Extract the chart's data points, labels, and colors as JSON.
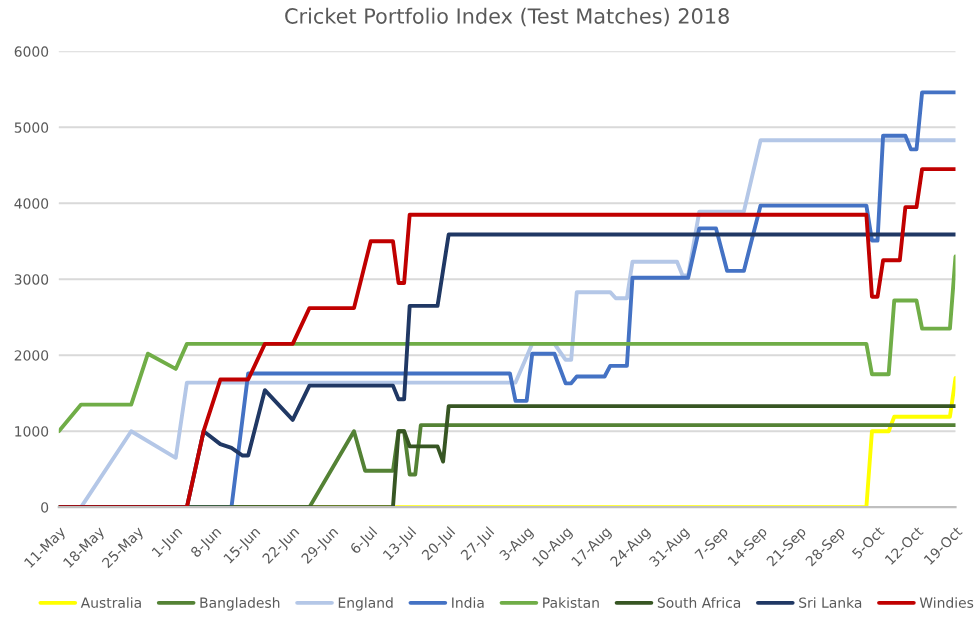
{
  "chart_data": {
    "type": "line",
    "title": "Cricket Portfolio Index (Test Matches) 2018",
    "xlim": [
      "2018-05-11",
      "2018-10-19"
    ],
    "xticks": [
      {
        "value": "2018-05-11",
        "label": "11-May"
      },
      {
        "value": "2018-05-18",
        "label": "18-May"
      },
      {
        "value": "2018-05-25",
        "label": "25-May"
      },
      {
        "value": "2018-06-01",
        "label": "1-Jun"
      },
      {
        "value": "2018-06-08",
        "label": "8-Jun"
      },
      {
        "value": "2018-06-15",
        "label": "15-Jun"
      },
      {
        "value": "2018-06-22",
        "label": "22-Jun"
      },
      {
        "value": "2018-06-29",
        "label": "29-Jun"
      },
      {
        "value": "2018-07-06",
        "label": "6-Jul"
      },
      {
        "value": "2018-07-13",
        "label": "13-Jul"
      },
      {
        "value": "2018-07-20",
        "label": "20-Jul"
      },
      {
        "value": "2018-07-27",
        "label": "27-Jul"
      },
      {
        "value": "2018-08-03",
        "label": "3-Aug"
      },
      {
        "value": "2018-08-10",
        "label": "10-Aug"
      },
      {
        "value": "2018-08-17",
        "label": "17-Aug"
      },
      {
        "value": "2018-08-24",
        "label": "24-Aug"
      },
      {
        "value": "2018-08-31",
        "label": "31-Aug"
      },
      {
        "value": "2018-09-07",
        "label": "7-Sep"
      },
      {
        "value": "2018-09-14",
        "label": "14-Sep"
      },
      {
        "value": "2018-09-21",
        "label": "21-Sep"
      },
      {
        "value": "2018-09-28",
        "label": "28-Sep"
      },
      {
        "value": "2018-10-05",
        "label": "5-Oct"
      },
      {
        "value": "2018-10-12",
        "label": "12-Oct"
      },
      {
        "value": "2018-10-19",
        "label": "19-Oct"
      }
    ],
    "ylim": [
      0,
      6000
    ],
    "yticks": [
      0,
      1000,
      2000,
      3000,
      4000,
      5000,
      6000
    ],
    "grid": "y",
    "legend": "bottom",
    "marker": "none",
    "line_style": "solid",
    "series": [
      {
        "name": "Australia",
        "color": "#ffff00",
        "x": [
          "2018-05-11",
          "2018-10-03",
          "2018-10-04",
          "2018-10-07",
          "2018-10-08",
          "2018-10-18",
          "2018-10-19"
        ],
        "values": [
          0,
          0,
          1000,
          1000,
          1190,
          1190,
          1700
        ]
      },
      {
        "name": "Bangladesh",
        "color": "#548235",
        "x": [
          "2018-05-11",
          "2018-06-25",
          "2018-07-03",
          "2018-07-05",
          "2018-07-10",
          "2018-07-11",
          "2018-07-12",
          "2018-07-13",
          "2018-07-14",
          "2018-07-15",
          "2018-10-19"
        ],
        "values": [
          0,
          0,
          1000,
          480,
          480,
          1000,
          1000,
          430,
          430,
          1080,
          1080
        ]
      },
      {
        "name": "England",
        "color": "#b4c7e7",
        "x": [
          "2018-05-11",
          "2018-05-15",
          "2018-05-24",
          "2018-06-01",
          "2018-06-03",
          "2018-08-01",
          "2018-08-04",
          "2018-08-08",
          "2018-08-10",
          "2018-08-11",
          "2018-08-12",
          "2018-08-18",
          "2018-08-19",
          "2018-08-21",
          "2018-08-22",
          "2018-08-30",
          "2018-08-31",
          "2018-09-01",
          "2018-09-03",
          "2018-09-11",
          "2018-09-14",
          "2018-10-19"
        ],
        "values": [
          0,
          0,
          1000,
          650,
          1640,
          1640,
          2150,
          2150,
          1940,
          1940,
          2830,
          2830,
          2750,
          2750,
          3230,
          3230,
          3050,
          3050,
          3890,
          3890,
          4830,
          4830
        ]
      },
      {
        "name": "India",
        "color": "#4472c4",
        "x": [
          "2018-05-11",
          "2018-06-11",
          "2018-06-14",
          "2018-07-31",
          "2018-08-01",
          "2018-08-03",
          "2018-08-04",
          "2018-08-08",
          "2018-08-10",
          "2018-08-11",
          "2018-08-12",
          "2018-08-17",
          "2018-08-18",
          "2018-08-21",
          "2018-08-22",
          "2018-09-01",
          "2018-09-03",
          "2018-09-06",
          "2018-09-08",
          "2018-09-11",
          "2018-09-14",
          "2018-10-03",
          "2018-10-04",
          "2018-10-05",
          "2018-10-06",
          "2018-10-10",
          "2018-10-11",
          "2018-10-12",
          "2018-10-13",
          "2018-10-19"
        ],
        "values": [
          0,
          0,
          1760,
          1760,
          1400,
          1400,
          2020,
          2020,
          1630,
          1630,
          1720,
          1720,
          1860,
          1860,
          3020,
          3020,
          3670,
          3670,
          3110,
          3110,
          3970,
          3970,
          3510,
          3510,
          4890,
          4890,
          4710,
          4710,
          5460,
          5460
        ]
      },
      {
        "name": "Pakistan",
        "color": "#70ad47",
        "x": [
          "2018-05-11",
          "2018-05-15",
          "2018-05-24",
          "2018-05-27",
          "2018-06-01",
          "2018-06-03",
          "2018-10-03",
          "2018-10-04",
          "2018-10-07",
          "2018-10-08",
          "2018-10-12",
          "2018-10-13",
          "2018-10-18",
          "2018-10-19"
        ],
        "values": [
          1000,
          1350,
          1350,
          2020,
          1820,
          2150,
          2150,
          1750,
          1750,
          2720,
          2720,
          2350,
          2350,
          3300
        ]
      },
      {
        "name": "South Africa",
        "color": "#375623",
        "x": [
          "2018-05-11",
          "2018-07-10",
          "2018-07-11",
          "2018-07-12",
          "2018-07-13",
          "2018-07-18",
          "2018-07-19",
          "2018-07-20",
          "2018-10-19"
        ],
        "values": [
          0,
          0,
          1000,
          1000,
          800,
          800,
          600,
          1330,
          1330
        ]
      },
      {
        "name": "Sri Lanka",
        "color": "#203864",
        "x": [
          "2018-05-11",
          "2018-06-03",
          "2018-06-06",
          "2018-06-09",
          "2018-06-11",
          "2018-06-13",
          "2018-06-14",
          "2018-06-17",
          "2018-06-22",
          "2018-06-25",
          "2018-07-10",
          "2018-07-11",
          "2018-07-12",
          "2018-07-13",
          "2018-07-18",
          "2018-07-20",
          "2018-10-19"
        ],
        "values": [
          0,
          0,
          1000,
          830,
          780,
          680,
          680,
          1540,
          1150,
          1600,
          1600,
          1420,
          1420,
          2650,
          2650,
          3590,
          3590
        ]
      },
      {
        "name": "Windies",
        "color": "#c00000",
        "x": [
          "2018-05-11",
          "2018-06-03",
          "2018-06-06",
          "2018-06-09",
          "2018-06-14",
          "2018-06-17",
          "2018-06-22",
          "2018-06-25",
          "2018-07-03",
          "2018-07-06",
          "2018-07-10",
          "2018-07-11",
          "2018-07-12",
          "2018-07-13",
          "2018-10-03",
          "2018-10-04",
          "2018-10-05",
          "2018-10-06",
          "2018-10-09",
          "2018-10-10",
          "2018-10-12",
          "2018-10-13",
          "2018-10-19"
        ],
        "values": [
          0,
          0,
          1000,
          1680,
          1680,
          2150,
          2150,
          2620,
          2620,
          3500,
          3500,
          2950,
          2950,
          3850,
          3850,
          2770,
          2770,
          3250,
          3250,
          3950,
          3950,
          4450,
          4450
        ]
      }
    ]
  }
}
